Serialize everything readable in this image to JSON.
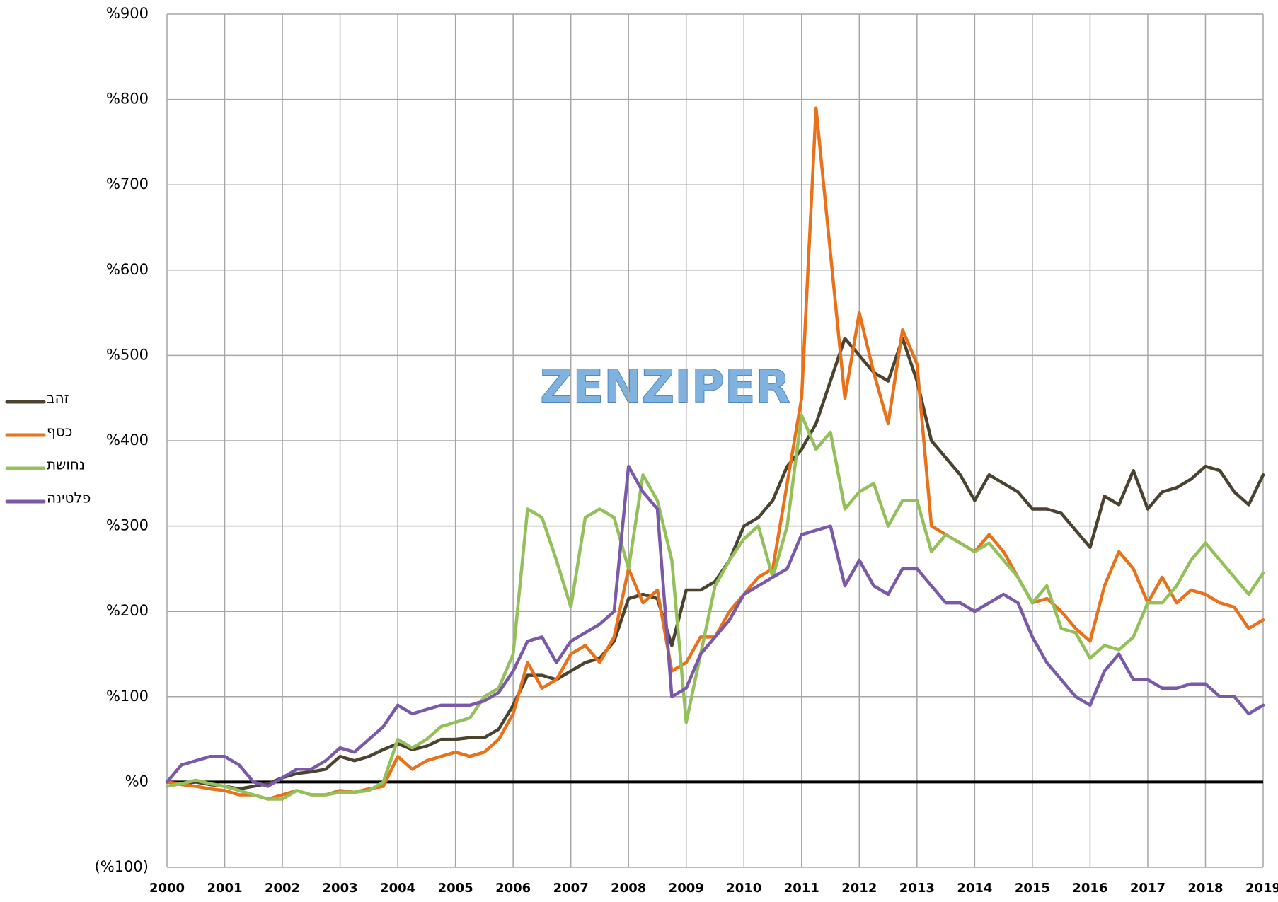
{
  "chart_data": {
    "type": "line",
    "watermark": "ZENZIPER",
    "xlim": [
      2000,
      2019
    ],
    "xticks": [
      2000,
      2001,
      2002,
      2003,
      2004,
      2005,
      2006,
      2007,
      2008,
      2009,
      2010,
      2011,
      2012,
      2013,
      2014,
      2015,
      2016,
      2017,
      2018,
      2019
    ],
    "ylim": [
      -100,
      900
    ],
    "yticks": [
      {
        "value": -100,
        "label": "(%100)"
      },
      {
        "value": 0,
        "label": "%0"
      },
      {
        "value": 100,
        "label": "%100"
      },
      {
        "value": 200,
        "label": "%200"
      },
      {
        "value": 300,
        "label": "%300"
      },
      {
        "value": 400,
        "label": "%400"
      },
      {
        "value": 500,
        "label": "%500"
      },
      {
        "value": 600,
        "label": "%600"
      },
      {
        "value": 700,
        "label": "%700"
      },
      {
        "value": 800,
        "label": "%800"
      },
      {
        "value": 900,
        "label": "%900"
      }
    ],
    "grid": true,
    "legend": "left",
    "x": [
      2000,
      2000.25,
      2000.5,
      2000.75,
      2001,
      2001.25,
      2001.5,
      2001.75,
      2002,
      2002.25,
      2002.5,
      2002.75,
      2003,
      2003.25,
      2003.5,
      2003.75,
      2004,
      2004.25,
      2004.5,
      2004.75,
      2005,
      2005.25,
      2005.5,
      2005.75,
      2006,
      2006.25,
      2006.5,
      2006.75,
      2007,
      2007.25,
      2007.5,
      2007.75,
      2008,
      2008.25,
      2008.5,
      2008.75,
      2009,
      2009.25,
      2009.5,
      2009.75,
      2010,
      2010.25,
      2010.5,
      2010.75,
      2011,
      2011.25,
      2011.5,
      2011.75,
      2012,
      2012.25,
      2012.5,
      2012.75,
      2013,
      2013.25,
      2013.5,
      2013.75,
      2014,
      2014.25,
      2014.5,
      2014.75,
      2015,
      2015.25,
      2015.5,
      2015.75,
      2016,
      2016.25,
      2016.5,
      2016.75,
      2017,
      2017.25,
      2017.5,
      2017.75,
      2018,
      2018.25,
      2018.5,
      2018.75,
      2019
    ],
    "series": [
      {
        "name": "זהב",
        "color": "#4a4330",
        "values": [
          0,
          -2,
          0,
          -3,
          -5,
          -8,
          -5,
          -2,
          5,
          10,
          12,
          15,
          30,
          25,
          30,
          38,
          45,
          38,
          42,
          50,
          50,
          52,
          52,
          62,
          90,
          125,
          125,
          120,
          130,
          140,
          145,
          165,
          215,
          220,
          215,
          160,
          225,
          225,
          235,
          260,
          300,
          310,
          330,
          370,
          390,
          420,
          470,
          520,
          500,
          480,
          470,
          520,
          470,
          400,
          380,
          360,
          330,
          360,
          350,
          340,
          320,
          320,
          315,
          295,
          275,
          335,
          325,
          365,
          320,
          340,
          345,
          355,
          370,
          365,
          340,
          325,
          360
        ]
      },
      {
        "name": "כסף",
        "color": "#e8711a",
        "values": [
          0,
          -3,
          -5,
          -8,
          -10,
          -15,
          -15,
          -20,
          -15,
          -10,
          -15,
          -15,
          -10,
          -12,
          -8,
          -5,
          30,
          15,
          25,
          30,
          35,
          30,
          35,
          50,
          80,
          140,
          110,
          120,
          150,
          160,
          140,
          170,
          250,
          210,
          225,
          130,
          140,
          170,
          170,
          200,
          220,
          240,
          250,
          350,
          450,
          790,
          620,
          450,
          550,
          480,
          420,
          530,
          490,
          300,
          290,
          280,
          270,
          290,
          270,
          240,
          210,
          215,
          200,
          180,
          165,
          230,
          270,
          250,
          210,
          240,
          210,
          225,
          220,
          210,
          205,
          180,
          190
        ]
      },
      {
        "name": "נחושת",
        "color": "#93c05a",
        "values": [
          -5,
          -2,
          2,
          -2,
          -5,
          -10,
          -15,
          -20,
          -20,
          -10,
          -15,
          -15,
          -12,
          -12,
          -10,
          0,
          50,
          40,
          50,
          65,
          70,
          75,
          100,
          110,
          150,
          320,
          310,
          260,
          205,
          310,
          320,
          310,
          250,
          360,
          330,
          260,
          70,
          150,
          230,
          260,
          285,
          300,
          240,
          300,
          430,
          390,
          410,
          320,
          340,
          350,
          300,
          330,
          330,
          270,
          290,
          280,
          270,
          280,
          260,
          240,
          210,
          230,
          180,
          175,
          145,
          160,
          155,
          170,
          210,
          210,
          230,
          260,
          280,
          260,
          240,
          220,
          245
        ]
      },
      {
        "name": "פלטינה",
        "color": "#7a5aa8",
        "values": [
          0,
          20,
          25,
          30,
          30,
          20,
          0,
          -5,
          5,
          15,
          15,
          25,
          40,
          35,
          50,
          65,
          90,
          80,
          85,
          90,
          90,
          90,
          95,
          105,
          130,
          165,
          170,
          140,
          165,
          175,
          185,
          200,
          370,
          340,
          320,
          100,
          110,
          150,
          170,
          190,
          220,
          230,
          240,
          250,
          290,
          295,
          300,
          230,
          260,
          230,
          220,
          250,
          250,
          230,
          210,
          210,
          200,
          210,
          220,
          210,
          170,
          140,
          120,
          100,
          90,
          130,
          150,
          120,
          120,
          110,
          110,
          115,
          115,
          100,
          100,
          80,
          90
        ]
      }
    ]
  }
}
